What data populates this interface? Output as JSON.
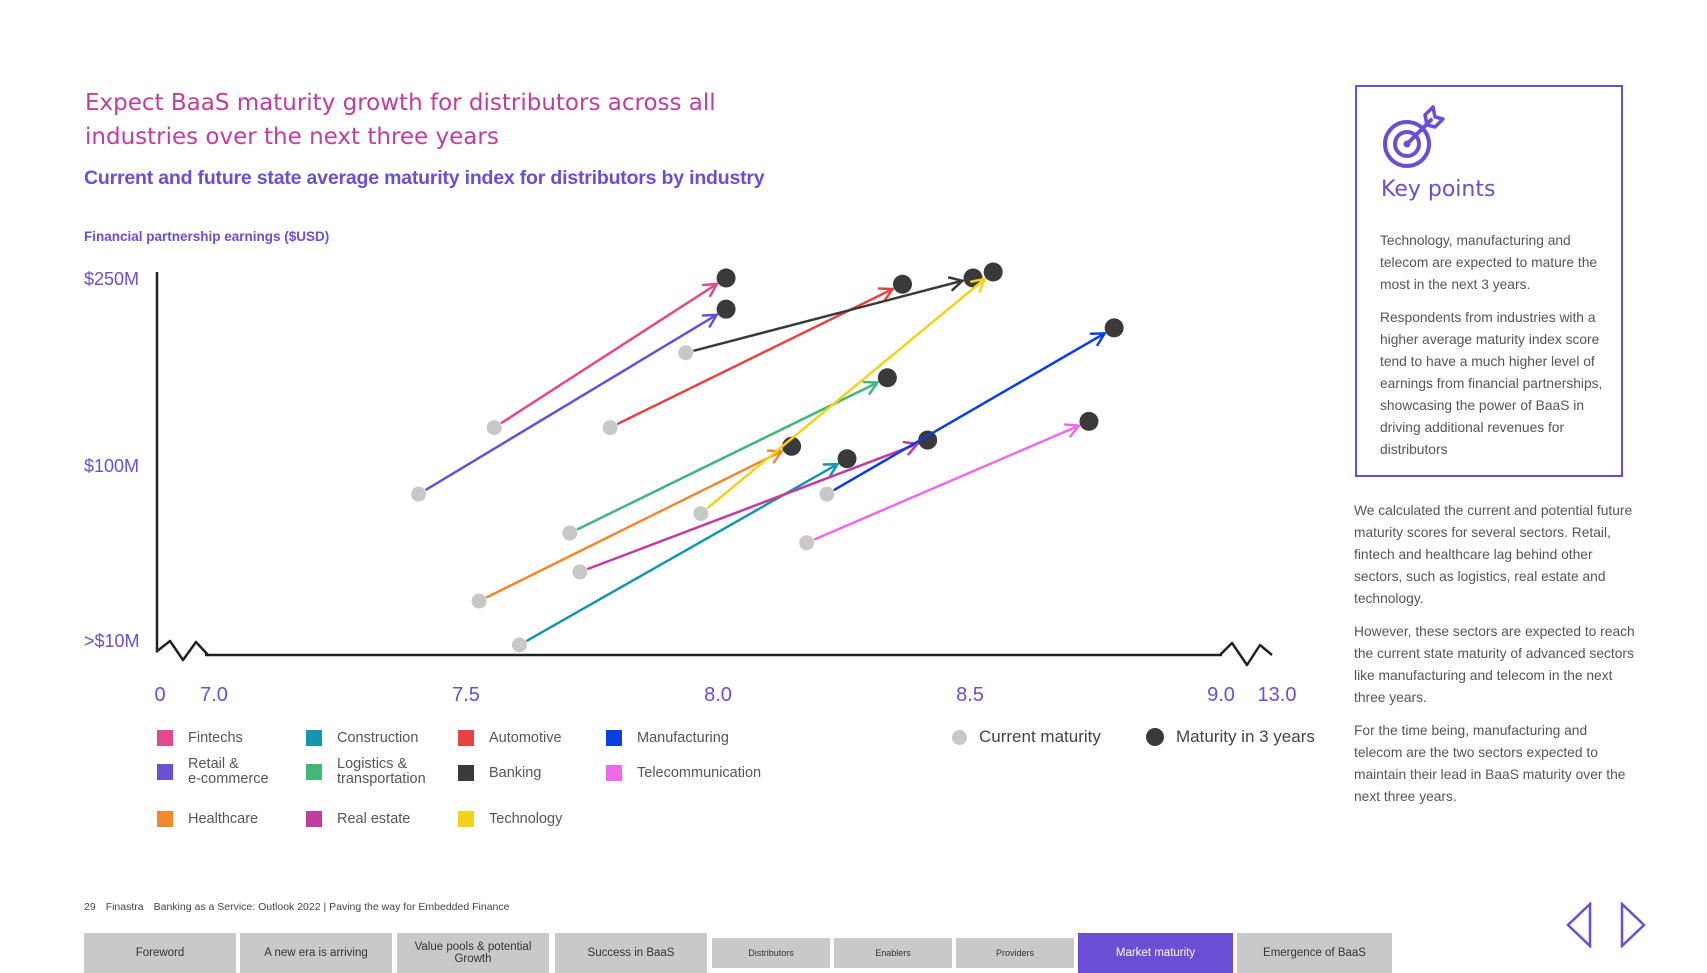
{
  "title": "Expect BaaS maturity growth for distributors across all industries over the next three years",
  "subtitle": "Current and future state average maturity index for distributors by industry",
  "chart_data": {
    "type": "scatter",
    "ylabel": "Financial partnership earnings ($USD)",
    "x_ticks": [
      "0",
      "7.0",
      "7.5",
      "8.0",
      "8.5",
      "9.0",
      "13.0"
    ],
    "x_break_ranges": [
      [
        0,
        7.0
      ],
      [
        9.0,
        13.0
      ]
    ],
    "xlim": [
      7.0,
      9.0
    ],
    "y_ticks": [
      "$250M",
      "$100M",
      ">$10M"
    ],
    "y_scale_note": "$250M at top, $100M middle, >$10M at base",
    "marker_legend": {
      "current": "Current maturity",
      "future": "Maturity in 3 years",
      "current_color": "#c8c8c8",
      "future_color": "#3a3a3a"
    },
    "series": [
      {
        "name": "Fintechs",
        "color": "#e4488f",
        "current": {
          "x": 7.56,
          "y": 130
        },
        "future": {
          "x": 8.02,
          "y": 250
        }
      },
      {
        "name": "Retail &\ne-commerce",
        "color": "#6a4fd4",
        "current": {
          "x": 7.41,
          "y": 85
        },
        "future": {
          "x": 8.02,
          "y": 225
        }
      },
      {
        "name": "Healthcare",
        "color": "#ef8a2a",
        "current": {
          "x": 7.53,
          "y": 30
        },
        "future": {
          "x": 8.15,
          "y": 115
        }
      },
      {
        "name": "Construction",
        "color": "#1596b0",
        "current": {
          "x": 7.61,
          "y": 5
        },
        "future": {
          "x": 8.26,
          "y": 105
        }
      },
      {
        "name": "Logistics &\ntransportation",
        "color": "#3fb87a",
        "current": {
          "x": 7.71,
          "y": 65
        },
        "future": {
          "x": 8.34,
          "y": 170
        }
      },
      {
        "name": "Real estate",
        "color": "#c13ca0",
        "current": {
          "x": 7.73,
          "y": 45
        },
        "future": {
          "x": 8.42,
          "y": 120
        }
      },
      {
        "name": "Automotive",
        "color": "#e64343",
        "current": {
          "x": 7.79,
          "y": 130
        },
        "future": {
          "x": 8.37,
          "y": 245
        }
      },
      {
        "name": "Banking",
        "color": "#3a3a3a",
        "current": {
          "x": 7.94,
          "y": 190
        },
        "future": {
          "x": 8.51,
          "y": 250
        }
      },
      {
        "name": "Technology",
        "color": "#f5d21a",
        "current": {
          "x": 7.97,
          "y": 75
        },
        "future": {
          "x": 8.55,
          "y": 255
        }
      },
      {
        "name": "Manufacturing",
        "color": "#0b3fe0",
        "current": {
          "x": 8.22,
          "y": 85
        },
        "future": {
          "x": 8.79,
          "y": 210
        }
      },
      {
        "name": "Telecommunication",
        "color": "#ef6ae8",
        "current": {
          "x": 8.18,
          "y": 60
        },
        "future": {
          "x": 8.74,
          "y": 135
        }
      }
    ]
  },
  "legend_layout_order": [
    "Fintechs",
    "Construction",
    "Automotive",
    "Manufacturing",
    "Retail &\ne-commerce",
    "Logistics &\ntransportation",
    "Banking",
    "Telecommunication",
    "Healthcare",
    "Real estate",
    "Technology"
  ],
  "key_points": {
    "title": "Key points",
    "paragraphs": [
      "Technology, manufacturing and telecom are expected to mature the most in the next 3 years.",
      "Respondents from industries with a higher average maturity index score tend to have a much higher level of earnings from financial partnerships, showcasing the power of BaaS in driving additional revenues for distributors"
    ]
  },
  "side_paragraphs": [
    "We calculated the current and potential future maturity scores for several sectors. Retail, fintech and healthcare lag behind other sectors, such as logistics, real estate and technology.",
    "However, these sectors are expected to reach the current state maturity of advanced sectors like manufacturing and telecom in the next three years.",
    "For the time being, manufacturing and telecom are the two sectors expected to maintain their lead in BaaS maturity over the next three years."
  ],
  "footer": {
    "page": "29",
    "brand": "Finastra",
    "doc": "Banking as a Service: Outlook 2022 | Paving the way for Embedded Finance"
  },
  "nav_tabs": [
    {
      "label": "Foreword",
      "active": false,
      "small": false
    },
    {
      "label": "A new era is arriving",
      "active": false,
      "small": false
    },
    {
      "label": "Value pools & potential\nGrowth",
      "active": false,
      "small": false
    },
    {
      "label": "Success in BaaS",
      "active": false,
      "small": false
    },
    {
      "label": "Distributors",
      "active": false,
      "small": true
    },
    {
      "label": "Enablers",
      "active": false,
      "small": true
    },
    {
      "label": "Providers",
      "active": false,
      "small": true
    },
    {
      "label": "Market maturity",
      "active": true,
      "small": false
    },
    {
      "label": "Emergence of BaaS",
      "active": false,
      "small": false
    }
  ],
  "colors": {
    "accent": "#6a4fd4",
    "title": "#c13ca0",
    "tab": "#c9c9cb"
  }
}
